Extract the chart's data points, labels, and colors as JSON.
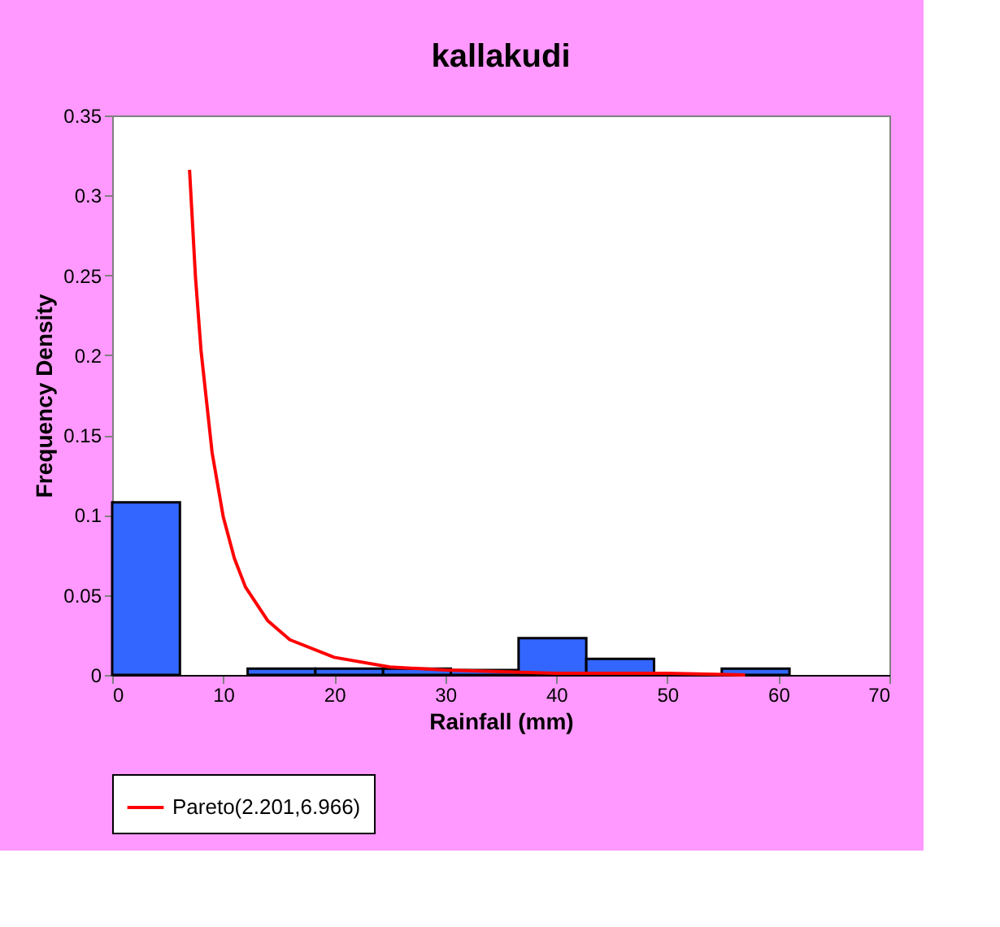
{
  "chart_data": {
    "type": "histogram",
    "title": "kallakudi",
    "xlabel": "Rainfall  (mm)",
    "ylabel": "Frequency Density",
    "bins": [
      0,
      6.1,
      12.2,
      18.3,
      24.4,
      30.5,
      36.6,
      42.7,
      48.8,
      54.9,
      61.0
    ],
    "values": [
      0.108,
      0,
      0.004,
      0.004,
      0.004,
      0.003,
      0.023,
      0.01,
      0,
      0.004
    ],
    "color": "#3366ff",
    "series": [
      {
        "name": "Pareto(2.201,6.966)",
        "type": "line",
        "color": "#ff0000",
        "x": [
          6.966,
          7.5,
          8,
          9,
          10,
          11,
          12,
          14,
          16,
          20,
          25,
          30,
          40,
          50,
          57
        ],
        "values": [
          0.316,
          0.249,
          0.203,
          0.139,
          0.099,
          0.073,
          0.055,
          0.034,
          0.022,
          0.011,
          0.005,
          0.003,
          0.001,
          0.001,
          0.0
        ]
      }
    ],
    "xlim": [
      0,
      70
    ],
    "xticks": [
      0,
      10,
      20,
      30,
      40,
      50,
      60,
      70
    ],
    "ylim": [
      0,
      0.35
    ],
    "yticks": [
      0,
      0.05,
      0.1,
      0.15,
      0.2,
      0.25,
      0.3,
      0.35
    ],
    "grid": false,
    "legend": "bottom"
  }
}
